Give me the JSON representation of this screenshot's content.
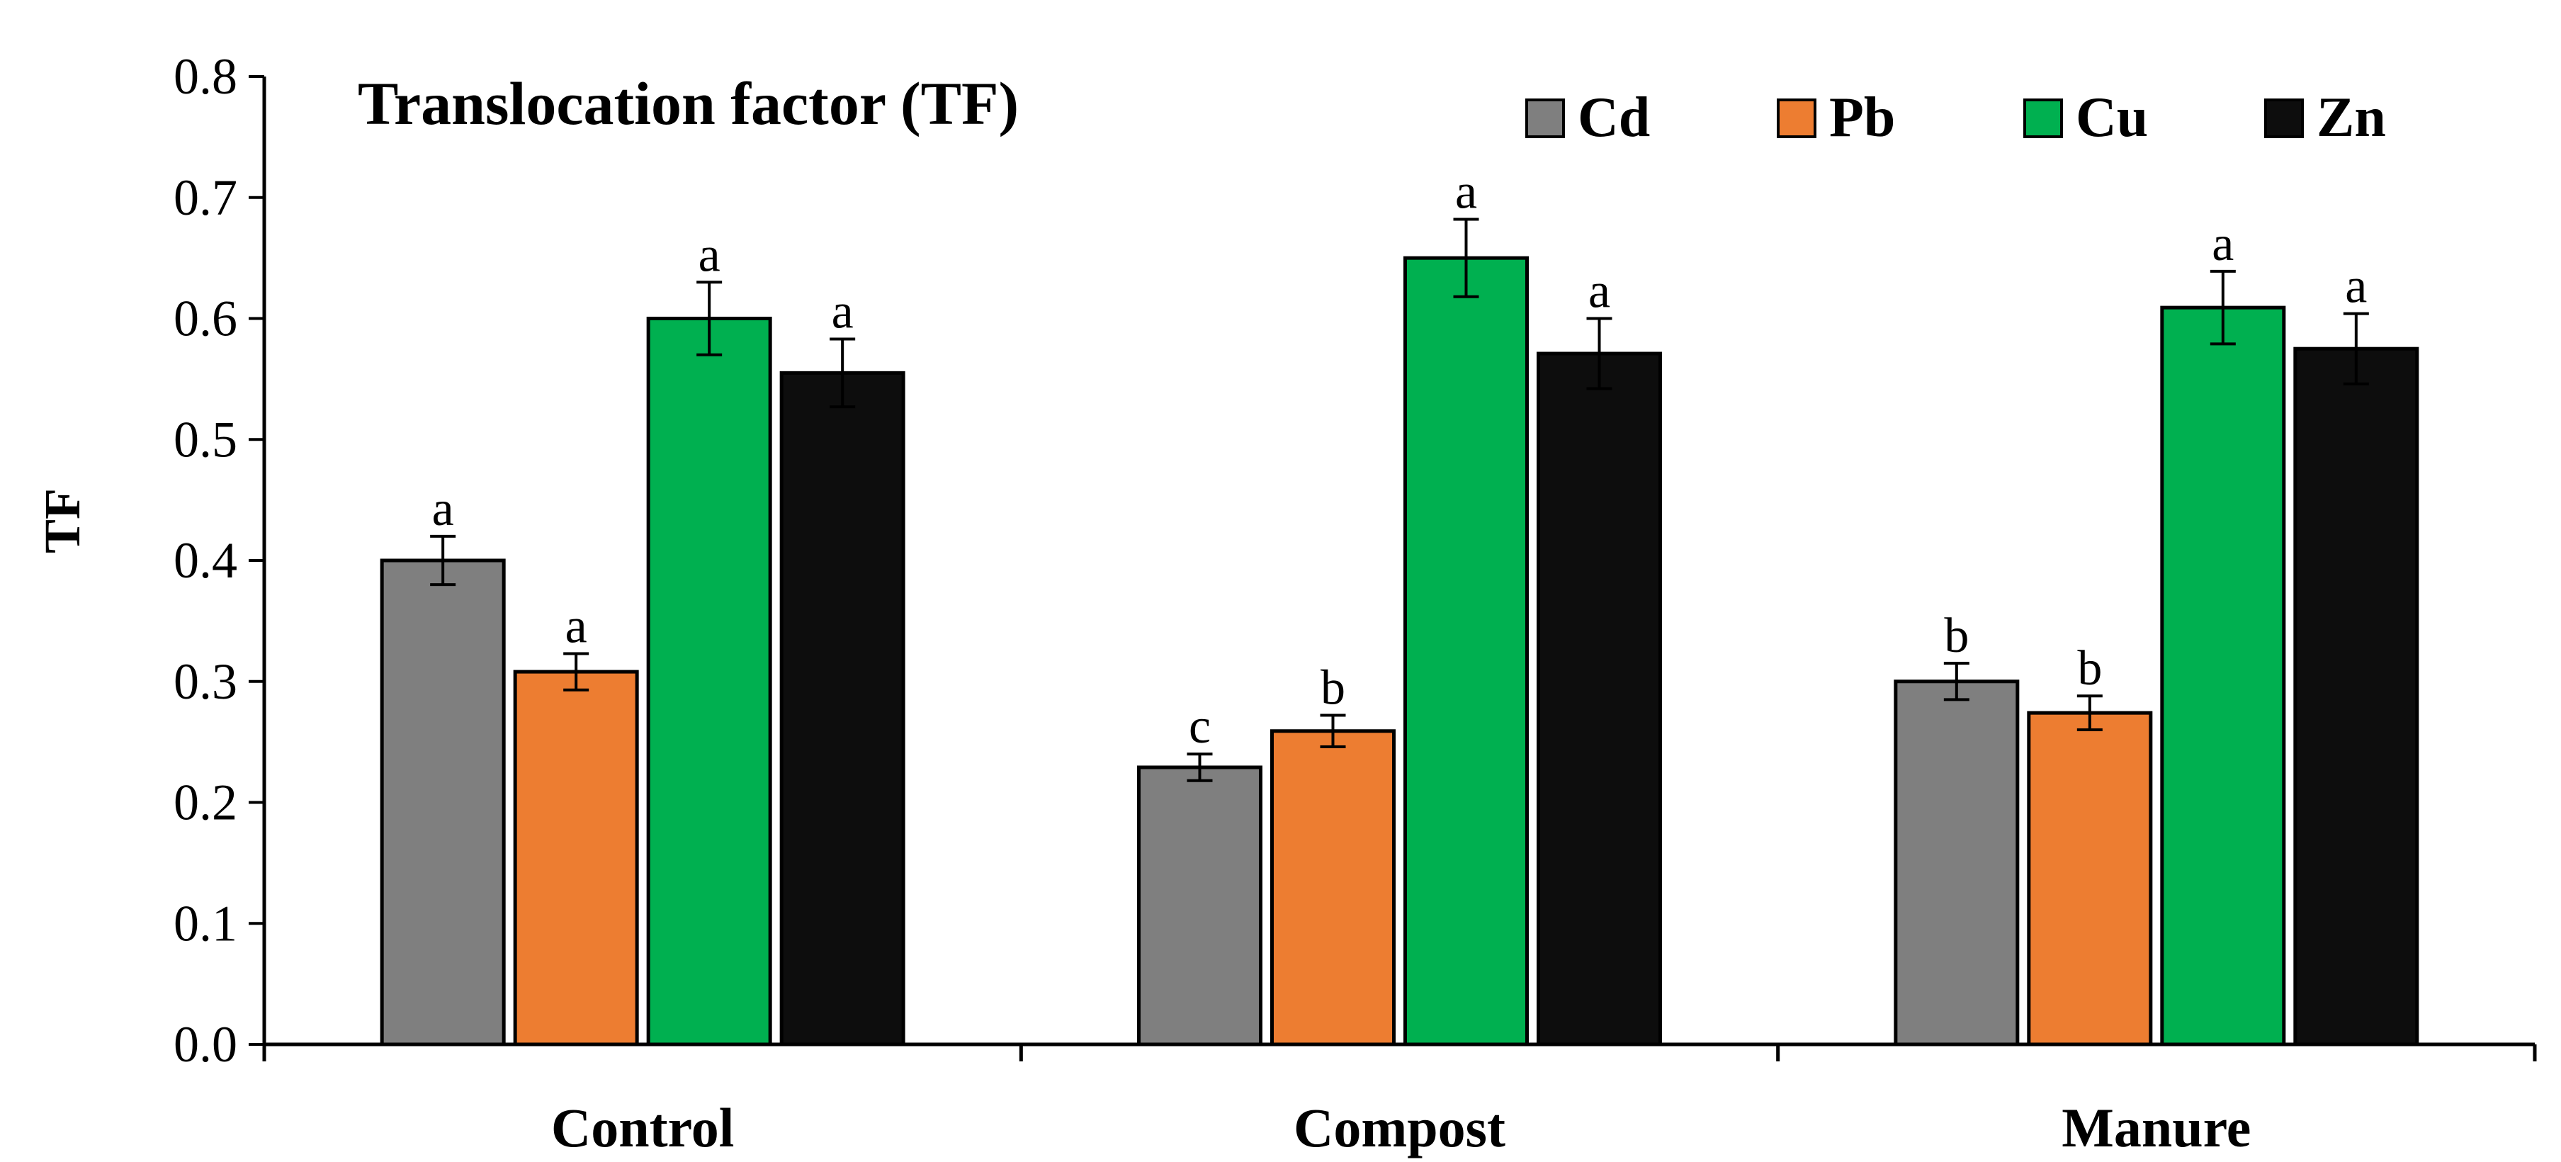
{
  "chart_data": {
    "type": "bar",
    "title": "Translocation factor (TF)",
    "xlabel": "",
    "ylabel": "TF",
    "ylim": [
      0,
      0.8
    ],
    "yticks": [
      "0.0",
      "0.1",
      "0.2",
      "0.3",
      "0.4",
      "0.5",
      "0.6",
      "0.7",
      "0.8"
    ],
    "categories": [
      "Control",
      "Compost",
      "Manure"
    ],
    "legend_position": "top-right",
    "grid": false,
    "series": [
      {
        "name": "Cd",
        "color": "#7f7f7f",
        "values": [
          0.4,
          0.229,
          0.3
        ],
        "errors": [
          0.02,
          0.011,
          0.015
        ],
        "letters": [
          "a",
          "c",
          "b"
        ]
      },
      {
        "name": "Pb",
        "color": "#ed7d31",
        "values": [
          0.308,
          0.259,
          0.274
        ],
        "errors": [
          0.015,
          0.013,
          0.014
        ],
        "letters": [
          "a",
          "b",
          "b"
        ]
      },
      {
        "name": "Cu",
        "color": "#00b050",
        "values": [
          0.6,
          0.65,
          0.609
        ],
        "errors": [
          0.03,
          0.032,
          0.03
        ],
        "letters": [
          "a",
          "a",
          "a"
        ]
      },
      {
        "name": "Zn",
        "color": "#0d0d0d",
        "values": [
          0.555,
          0.571,
          0.575
        ],
        "errors": [
          0.028,
          0.029,
          0.029
        ],
        "letters": [
          "a",
          "a",
          "a"
        ]
      }
    ]
  }
}
